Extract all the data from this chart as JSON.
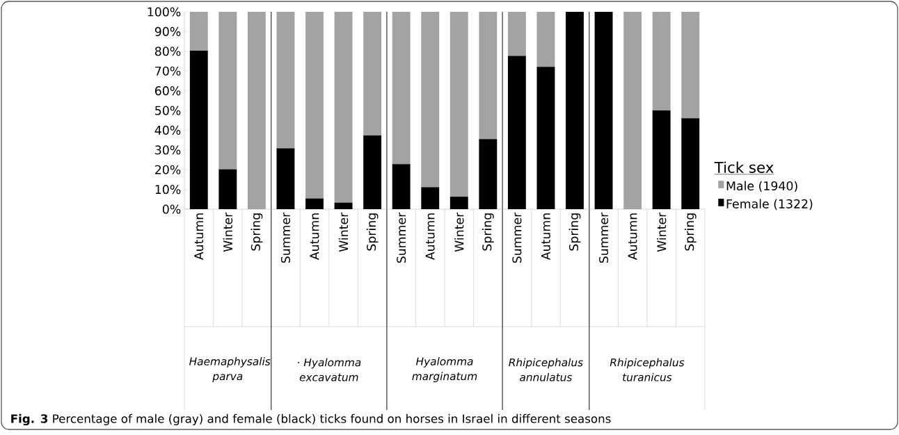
{
  "chart_data": {
    "type": "bar",
    "stacked": true,
    "categories": [
      "Autumn",
      "Winter",
      "Spring",
      "Summer",
      "Autumn",
      "Winter",
      "Spring",
      "Summer",
      "Autumn",
      "Winter",
      "Spring",
      "Summer",
      "Autumn",
      "Spring",
      "Summer",
      "Autumn",
      "Winter",
      "Spring"
    ],
    "series": [
      {
        "name": "Female (1322)",
        "color": "#000000",
        "values": [
          80.3,
          20.2,
          0,
          30.8,
          5.4,
          3.3,
          37.3,
          22.8,
          11.1,
          6.3,
          35.5,
          77.6,
          72.1,
          100,
          100,
          0,
          50,
          46
        ]
      },
      {
        "name": "Male  (1940)",
        "color": "#a3a3a3",
        "values": [
          19.7,
          79.8,
          100,
          69.2,
          94.6,
          96.7,
          62.7,
          77.2,
          88.9,
          93.7,
          64.5,
          22.4,
          27.9,
          0,
          0,
          100,
          50,
          54
        ]
      }
    ],
    "ylim": [
      0,
      100
    ],
    "yticks": [
      {
        "value": 0,
        "label": "0%"
      },
      {
        "value": 10,
        "label": "10%"
      },
      {
        "value": 20,
        "label": "20%"
      },
      {
        "value": 30,
        "label": "30%"
      },
      {
        "value": 40,
        "label": "40%"
      },
      {
        "value": 50,
        "label": "50%"
      },
      {
        "value": 60,
        "label": "60%"
      },
      {
        "value": 70,
        "label": "70%"
      },
      {
        "value": 80,
        "label": "80%"
      },
      {
        "value": 90,
        "label": "90%"
      },
      {
        "value": 100,
        "label": "100%"
      }
    ],
    "legend": "right",
    "legend_title": "Tick sex",
    "annotations": [
      "Haemaphysalis parva",
      "· Hyalomma excavatum",
      "Hyalomma marginatum",
      "Rhipicephalus annulatus",
      "Rhipicephalus turanicus",
      "**Fig. 3** Percentage of male (gray) and female (black) ticks found on horses in Israel in different seasons"
    ]
  }
}
